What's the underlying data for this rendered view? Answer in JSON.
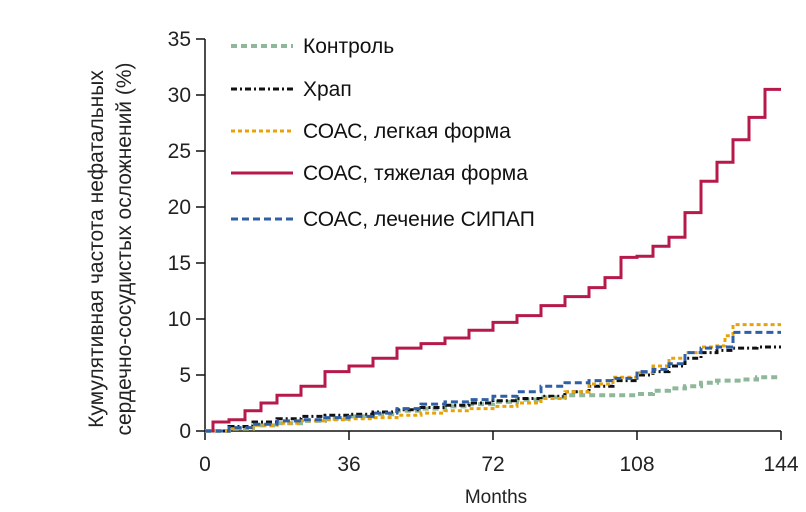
{
  "chart_data": {
    "type": "line",
    "subtype": "step",
    "xlabel": "Months",
    "ylabel_lines": [
      "Кумулятивная частота нефатальных",
      "сердечно-сосудистых осложнений (%)"
    ],
    "xlim": [
      0,
      144
    ],
    "ylim": [
      0,
      35
    ],
    "xticks": [
      0,
      36,
      72,
      108,
      144
    ],
    "yticks": [
      0,
      5,
      10,
      15,
      20,
      25,
      30,
      35
    ],
    "grid": false,
    "legend_position": "top-left",
    "series": [
      {
        "name": "Контроль",
        "color": "#8fb89a",
        "dash": "6,4",
        "width": 4,
        "points": [
          [
            0,
            0
          ],
          [
            6,
            0.2
          ],
          [
            12,
            0.5
          ],
          [
            18,
            0.7
          ],
          [
            24,
            0.9
          ],
          [
            30,
            1.1
          ],
          [
            36,
            1.3
          ],
          [
            42,
            1.5
          ],
          [
            48,
            1.8
          ],
          [
            54,
            2.0
          ],
          [
            60,
            2.2
          ],
          [
            66,
            2.4
          ],
          [
            72,
            2.6
          ],
          [
            78,
            2.8
          ],
          [
            84,
            3.0
          ],
          [
            90,
            3.2
          ],
          [
            96,
            3.2
          ],
          [
            102,
            3.2
          ],
          [
            108,
            3.3
          ],
          [
            112,
            3.6
          ],
          [
            116,
            3.8
          ],
          [
            120,
            4.0
          ],
          [
            124,
            4.3
          ],
          [
            128,
            4.5
          ],
          [
            134,
            4.6
          ],
          [
            138,
            4.8
          ],
          [
            144,
            4.8
          ]
        ]
      },
      {
        "name": "Храп",
        "color": "#111111",
        "dash": "6,3,2,3",
        "width": 3,
        "points": [
          [
            0,
            0
          ],
          [
            6,
            0.4
          ],
          [
            12,
            0.8
          ],
          [
            18,
            1.1
          ],
          [
            24,
            1.3
          ],
          [
            30,
            1.4
          ],
          [
            36,
            1.5
          ],
          [
            42,
            1.7
          ],
          [
            48,
            1.9
          ],
          [
            54,
            2.1
          ],
          [
            60,
            2.3
          ],
          [
            66,
            2.5
          ],
          [
            72,
            2.7
          ],
          [
            78,
            2.9
          ],
          [
            84,
            3.1
          ],
          [
            90,
            3.5
          ],
          [
            96,
            4.0
          ],
          [
            102,
            4.5
          ],
          [
            108,
            5.0
          ],
          [
            112,
            5.3
          ],
          [
            116,
            5.8
          ],
          [
            120,
            6.5
          ],
          [
            124,
            7.0
          ],
          [
            128,
            7.2
          ],
          [
            132,
            7.4
          ],
          [
            138,
            7.5
          ],
          [
            144,
            7.5
          ]
        ]
      },
      {
        "name": "СОАС, легкая форма",
        "color": "#e8a30a",
        "dash": "4,3",
        "width": 3,
        "points": [
          [
            0,
            0
          ],
          [
            6,
            0.2
          ],
          [
            12,
            0.5
          ],
          [
            18,
            0.7
          ],
          [
            24,
            0.9
          ],
          [
            30,
            1.0
          ],
          [
            36,
            1.1
          ],
          [
            42,
            1.2
          ],
          [
            48,
            1.4
          ],
          [
            54,
            1.6
          ],
          [
            60,
            1.8
          ],
          [
            66,
            2.0
          ],
          [
            72,
            2.2
          ],
          [
            78,
            2.5
          ],
          [
            84,
            2.9
          ],
          [
            90,
            3.5
          ],
          [
            96,
            4.2
          ],
          [
            102,
            4.8
          ],
          [
            108,
            5.2
          ],
          [
            112,
            5.8
          ],
          [
            116,
            6.5
          ],
          [
            120,
            7.0
          ],
          [
            124,
            7.5
          ],
          [
            128,
            7.6
          ],
          [
            130,
            8.5
          ],
          [
            132,
            9.5
          ],
          [
            138,
            9.5
          ],
          [
            144,
            9.5
          ]
        ]
      },
      {
        "name": "СОАС, тяжелая форма",
        "color": "#b51a4a",
        "dash": "",
        "width": 3,
        "points": [
          [
            0,
            0
          ],
          [
            2,
            0.8
          ],
          [
            6,
            1.0
          ],
          [
            10,
            1.8
          ],
          [
            14,
            2.5
          ],
          [
            18,
            3.2
          ],
          [
            24,
            4.0
          ],
          [
            30,
            5.3
          ],
          [
            36,
            5.8
          ],
          [
            42,
            6.5
          ],
          [
            48,
            7.4
          ],
          [
            54,
            7.8
          ],
          [
            60,
            8.3
          ],
          [
            66,
            9.0
          ],
          [
            72,
            9.7
          ],
          [
            78,
            10.3
          ],
          [
            84,
            11.2
          ],
          [
            90,
            12.0
          ],
          [
            96,
            12.8
          ],
          [
            100,
            13.7
          ],
          [
            104,
            15.5
          ],
          [
            108,
            15.6
          ],
          [
            112,
            16.5
          ],
          [
            116,
            17.3
          ],
          [
            120,
            19.5
          ],
          [
            124,
            22.3
          ],
          [
            128,
            24.0
          ],
          [
            132,
            26.0
          ],
          [
            136,
            28.0
          ],
          [
            140,
            30.5
          ],
          [
            144,
            30.5
          ]
        ]
      },
      {
        "name": "СОАС, лечение СИПАП",
        "color": "#2f5fa5",
        "dash": "7,4",
        "width": 3,
        "points": [
          [
            0,
            0
          ],
          [
            6,
            0.3
          ],
          [
            12,
            0.6
          ],
          [
            18,
            0.9
          ],
          [
            24,
            1.0
          ],
          [
            30,
            1.2
          ],
          [
            36,
            1.3
          ],
          [
            42,
            1.6
          ],
          [
            48,
            2.0
          ],
          [
            54,
            2.4
          ],
          [
            60,
            2.6
          ],
          [
            66,
            2.8
          ],
          [
            72,
            3.1
          ],
          [
            78,
            3.5
          ],
          [
            84,
            4.0
          ],
          [
            90,
            4.3
          ],
          [
            96,
            4.5
          ],
          [
            102,
            4.7
          ],
          [
            108,
            5.3
          ],
          [
            112,
            5.5
          ],
          [
            116,
            6.0
          ],
          [
            120,
            7.0
          ],
          [
            124,
            7.4
          ],
          [
            128,
            7.5
          ],
          [
            132,
            8.8
          ],
          [
            138,
            8.8
          ],
          [
            144,
            8.8
          ]
        ]
      }
    ]
  }
}
